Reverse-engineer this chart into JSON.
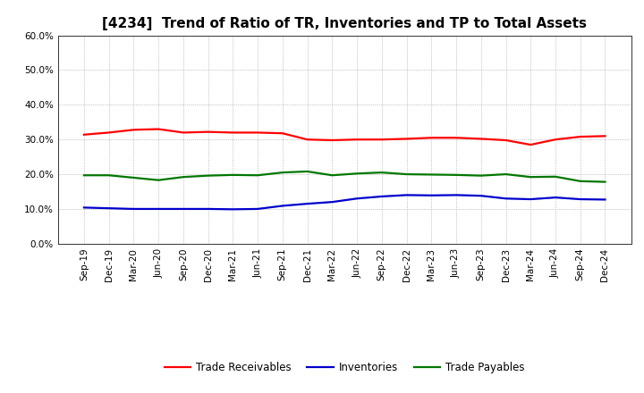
{
  "title": "[4234]  Trend of Ratio of TR, Inventories and TP to Total Assets",
  "x_labels": [
    "Sep-19",
    "Dec-19",
    "Mar-20",
    "Jun-20",
    "Sep-20",
    "Dec-20",
    "Mar-21",
    "Jun-21",
    "Sep-21",
    "Dec-21",
    "Mar-22",
    "Jun-22",
    "Sep-22",
    "Dec-22",
    "Mar-23",
    "Jun-23",
    "Sep-23",
    "Dec-23",
    "Mar-24",
    "Jun-24",
    "Sep-24",
    "Dec-24"
  ],
  "trade_receivables": [
    0.314,
    0.32,
    0.328,
    0.33,
    0.32,
    0.322,
    0.32,
    0.32,
    0.318,
    0.3,
    0.298,
    0.3,
    0.3,
    0.302,
    0.305,
    0.305,
    0.302,
    0.298,
    0.285,
    0.3,
    0.308,
    0.31
  ],
  "inventories": [
    0.104,
    0.102,
    0.1,
    0.1,
    0.1,
    0.1,
    0.099,
    0.1,
    0.109,
    0.115,
    0.12,
    0.13,
    0.136,
    0.14,
    0.139,
    0.14,
    0.138,
    0.13,
    0.128,
    0.133,
    0.128,
    0.127
  ],
  "trade_payables": [
    0.197,
    0.197,
    0.19,
    0.183,
    0.192,
    0.196,
    0.198,
    0.197,
    0.205,
    0.208,
    0.197,
    0.202,
    0.205,
    0.2,
    0.199,
    0.198,
    0.196,
    0.2,
    0.192,
    0.193,
    0.18,
    0.178
  ],
  "ylim": [
    0.0,
    0.6
  ],
  "yticks": [
    0.0,
    0.1,
    0.2,
    0.3,
    0.4,
    0.5,
    0.6
  ],
  "color_tr": "#FF0000",
  "color_inv": "#0000CC",
  "color_tp": "#007700",
  "legend_labels": [
    "Trade Receivables",
    "Inventories",
    "Trade Payables"
  ],
  "line_width": 1.6,
  "background_color": "#FFFFFF",
  "grid_color": "#999999",
  "title_fontsize": 11,
  "tick_fontsize": 7.5,
  "legend_fontsize": 8.5
}
